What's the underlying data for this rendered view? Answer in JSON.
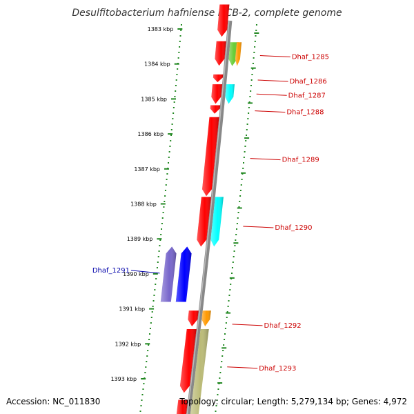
{
  "title": "Desulfitobacterium hafniense DCB-2, complete genome",
  "footer": {
    "accession": "Accession: NC_011830",
    "topology": "Topology: circular; Length: 5,279,134 bp; Genes: 4,972"
  },
  "colors": {
    "backbone": "#888888",
    "forward_label": "#cc0000",
    "reverse_label": "#0000aa",
    "tick": "#228822",
    "red": "#ff0000",
    "green": "#66cc33",
    "orange": "#ff9900",
    "cyan": "#00ffff",
    "blue": "#0000ff",
    "purple": "#7766cc",
    "khaki": "#bbbb77"
  },
  "scale_ticks": [
    {
      "kbp": 1383,
      "label": "1383 kbp"
    },
    {
      "kbp": 1384,
      "label": "1384 kbp"
    },
    {
      "kbp": 1385,
      "label": "1385 kbp"
    },
    {
      "kbp": 1386,
      "label": "1386 kbp"
    },
    {
      "kbp": 1387,
      "label": "1387 kbp"
    },
    {
      "kbp": 1388,
      "label": "1388 kbp"
    },
    {
      "kbp": 1389,
      "label": "1389 kbp"
    },
    {
      "kbp": 1390,
      "label": "1390 kbp"
    },
    {
      "kbp": 1391,
      "label": "1391 kbp"
    },
    {
      "kbp": 1392,
      "label": "1392 kbp"
    },
    {
      "kbp": 1393,
      "label": "1393 kbp"
    }
  ],
  "labeled_genes": [
    {
      "id": "Dhaf_1285",
      "kbp": 1383.76,
      "strand": "forward"
    },
    {
      "id": "Dhaf_1286",
      "kbp": 1384.46,
      "strand": "forward"
    },
    {
      "id": "Dhaf_1287",
      "kbp": 1384.86,
      "strand": "forward"
    },
    {
      "id": "Dhaf_1288",
      "kbp": 1385.34,
      "strand": "forward"
    },
    {
      "id": "Dhaf_1289",
      "kbp": 1386.7,
      "strand": "forward"
    },
    {
      "id": "Dhaf_1290",
      "kbp": 1388.64,
      "strand": "forward"
    },
    {
      "id": "Dhaf_1291",
      "kbp": 1389.88,
      "strand": "reverse"
    },
    {
      "id": "Dhaf_1292",
      "kbp": 1391.44,
      "strand": "forward"
    },
    {
      "id": "Dhaf_1293",
      "kbp": 1392.66,
      "strand": "forward"
    }
  ],
  "features": [
    {
      "lane": "f1",
      "start": 1382.3,
      "end": 1383.22,
      "dir": "+",
      "color": "red"
    },
    {
      "lane": "f1",
      "start": 1383.35,
      "end": 1384.05,
      "dir": "+",
      "color": "red"
    },
    {
      "lane": "f2",
      "start": 1383.38,
      "end": 1384.06,
      "dir": "+",
      "color": "green"
    },
    {
      "lane": "f3",
      "start": 1383.38,
      "end": 1384.06,
      "dir": "+",
      "color": "orange"
    },
    {
      "lane": "f1",
      "start": 1384.3,
      "end": 1384.52,
      "dir": "+",
      "color": "red"
    },
    {
      "lane": "f1",
      "start": 1384.58,
      "end": 1385.14,
      "dir": "+",
      "color": "red"
    },
    {
      "lane": "f2",
      "start": 1384.58,
      "end": 1385.14,
      "dir": "+",
      "color": "cyan"
    },
    {
      "lane": "f1",
      "start": 1385.18,
      "end": 1385.42,
      "dir": "+",
      "color": "red"
    },
    {
      "lane": "f1",
      "start": 1385.52,
      "end": 1387.78,
      "dir": "+",
      "color": "red"
    },
    {
      "lane": "f1",
      "start": 1387.8,
      "end": 1389.22,
      "dir": "+",
      "color": "red"
    },
    {
      "lane": "f2",
      "start": 1387.8,
      "end": 1389.22,
      "dir": "+",
      "color": "cyan"
    },
    {
      "lane": "r2",
      "start": 1389.22,
      "end": 1390.8,
      "dir": "-",
      "color": "purple"
    },
    {
      "lane": "r1",
      "start": 1389.22,
      "end": 1390.8,
      "dir": "-",
      "color": "blue"
    },
    {
      "lane": "f1",
      "start": 1391.05,
      "end": 1391.5,
      "dir": "+",
      "color": "red"
    },
    {
      "lane": "f2",
      "start": 1391.05,
      "end": 1391.5,
      "dir": "+",
      "color": "orange"
    },
    {
      "lane": "f1",
      "start": 1391.58,
      "end": 1393.4,
      "dir": "+",
      "color": "red"
    },
    {
      "lane": "f2",
      "start": 1391.58,
      "end": 1394.2,
      "dir": "+",
      "color": "khaki"
    },
    {
      "lane": "f1",
      "start": 1393.6,
      "end": 1394.2,
      "dir": "+",
      "color": "red"
    }
  ]
}
